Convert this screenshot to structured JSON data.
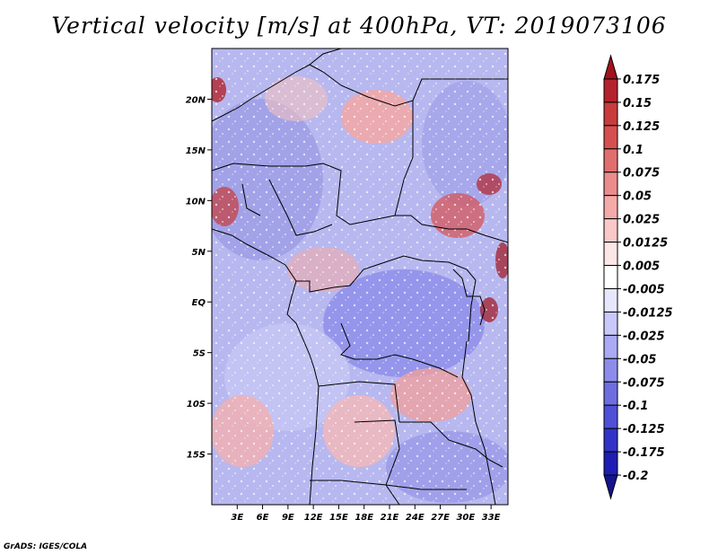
{
  "title": "Vertical velocity [m/s] at 400hPa, VT: 2019073106",
  "credit": "GrADS: IGES/COLA",
  "map": {
    "lon_range": [
      0,
      35
    ],
    "lat_range": [
      -20,
      25
    ],
    "lon_ticks": [
      {
        "value": 3,
        "label": "3E"
      },
      {
        "value": 6,
        "label": "6E"
      },
      {
        "value": 9,
        "label": "9E"
      },
      {
        "value": 12,
        "label": "12E"
      },
      {
        "value": 15,
        "label": "15E"
      },
      {
        "value": 18,
        "label": "18E"
      },
      {
        "value": 21,
        "label": "21E"
      },
      {
        "value": 24,
        "label": "24E"
      },
      {
        "value": 27,
        "label": "27E"
      },
      {
        "value": 30,
        "label": "30E"
      },
      {
        "value": 33,
        "label": "33E"
      }
    ],
    "lat_ticks": [
      {
        "value": 20,
        "label": "20N"
      },
      {
        "value": 15,
        "label": "15N"
      },
      {
        "value": 10,
        "label": "10N"
      },
      {
        "value": 5,
        "label": "5N"
      },
      {
        "value": 0,
        "label": "EQ"
      },
      {
        "value": -5,
        "label": "5S"
      },
      {
        "value": -10,
        "label": "10S"
      },
      {
        "value": -15,
        "label": "15S"
      }
    ]
  },
  "colorbar": {
    "labels": [
      "0.175",
      "0.15",
      "0.125",
      "0.1",
      "0.075",
      "0.05",
      "0.025",
      "0.0125",
      "0.005",
      "-0.005",
      "-0.0125",
      "-0.025",
      "-0.05",
      "-0.075",
      "-0.1",
      "-0.125",
      "-0.175",
      "-0.2"
    ],
    "colors": [
      "#a0141e",
      "#b4232d",
      "#c83c3c",
      "#d75050",
      "#e16e6e",
      "#eb8c8c",
      "#f5aaaa",
      "#fac8c8",
      "#fde6e6",
      "#ffffff",
      "#e6e6fd",
      "#c8c8fa",
      "#aaaaf5",
      "#8c8ceb",
      "#6e6ee1",
      "#5050d7",
      "#3232c8",
      "#1e1eb4",
      "#14148c"
    ]
  }
}
